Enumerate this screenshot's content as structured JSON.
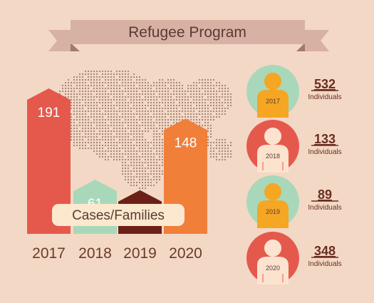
{
  "title": "Refugee Program",
  "chart_data": {
    "type": "bar",
    "title": "Refugee Program",
    "categories": [
      "2017",
      "2018",
      "2019",
      "2020"
    ],
    "series": [
      {
        "name": "Cases/Families",
        "values": [
          191,
          61,
          46,
          148
        ]
      }
    ],
    "value_labels": [
      "191",
      "61",
      "46",
      "148"
    ],
    "bar_colors": [
      "#e5594d",
      "#a8d8b9",
      "#6b2018",
      "#f07f3a"
    ],
    "label_colors": [
      "#ffffff",
      "#ffffff",
      "#ffffff",
      "#ffffff"
    ],
    "ylim": [
      0,
      191
    ],
    "grid": false,
    "individuals": [
      {
        "year": "2017",
        "count": "532",
        "unit": "Individuals",
        "circle_color": "#a8d8b9",
        "figure_color": "#f5a623"
      },
      {
        "year": "2018",
        "count": "133",
        "unit": "Individuals",
        "circle_color": "#e5594d",
        "figure_color": "#fbe3d0"
      },
      {
        "year": "2019",
        "count": "89",
        "unit": "Individuals",
        "circle_color": "#a8d8b9",
        "figure_color": "#f5a623"
      },
      {
        "year": "2020",
        "count": "348",
        "unit": "Individuals",
        "circle_color": "#e5594d",
        "figure_color": "#fbe3d0"
      }
    ]
  },
  "colors": {
    "background": "#f3d8c6",
    "ribbon": "#d7b1a3",
    "ribbon_fold": "#a27a6c",
    "legend_box": "#fbe8cf",
    "map_dots": "#5b3a33"
  }
}
